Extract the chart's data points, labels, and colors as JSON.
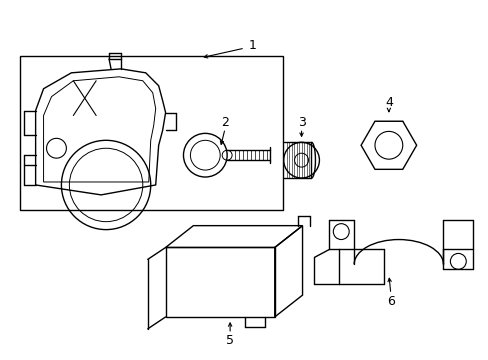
{
  "bg_color": "#ffffff",
  "line_color": "#000000",
  "lw": 1.0,
  "fig_width": 4.89,
  "fig_height": 3.6,
  "dpi": 100
}
